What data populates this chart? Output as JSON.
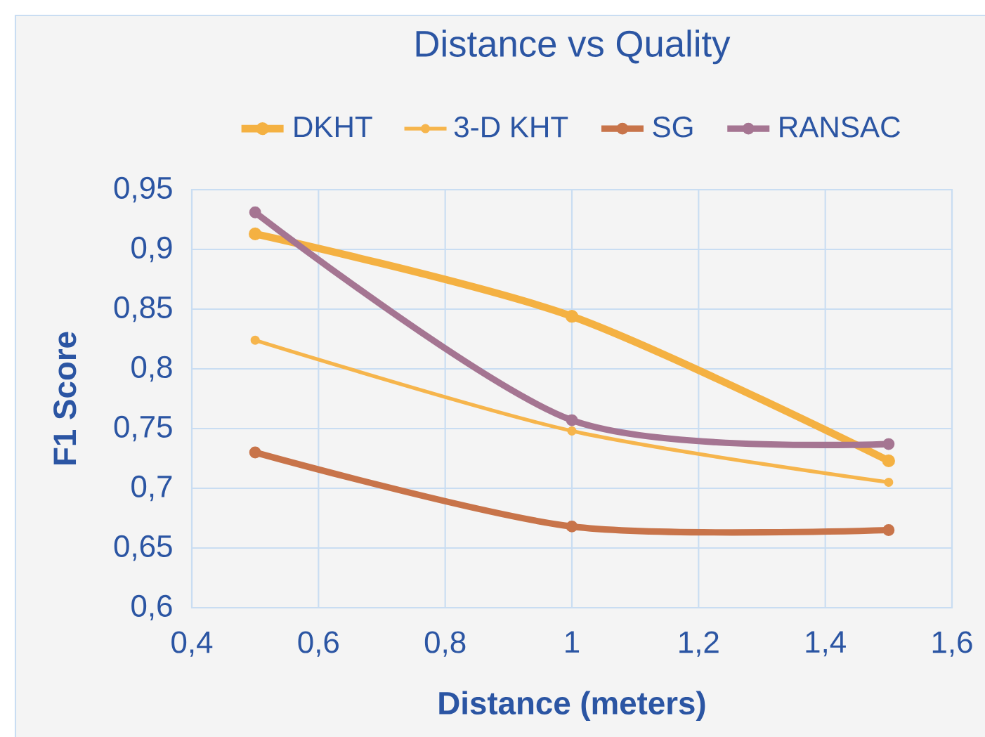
{
  "chart_data": {
    "type": "line",
    "title": "Distance vs Quality",
    "xlabel": "Distance (meters)",
    "ylabel": "F1 Score",
    "x": [
      0.5,
      1,
      1.5
    ],
    "series": [
      {
        "name": "DKHT",
        "color": "#f4b142",
        "values": [
          0.913,
          0.844,
          0.723
        ]
      },
      {
        "name": "3-D KHT",
        "color": "#f6b54c",
        "values": [
          0.824,
          0.748,
          0.705
        ]
      },
      {
        "name": "SG",
        "color": "#c8744a",
        "values": [
          0.73,
          0.668,
          0.665
        ]
      },
      {
        "name": "RANSAC",
        "color": "#a57592",
        "values": [
          0.931,
          0.757,
          0.737
        ]
      }
    ],
    "xlim": [
      0.4,
      1.6
    ],
    "xticks": [
      {
        "value": 0.4,
        "label": "0,4"
      },
      {
        "value": 0.6,
        "label": "0,6"
      },
      {
        "value": 0.8,
        "label": "0,8"
      },
      1,
      {
        "value": 1.2,
        "label": "1,2"
      },
      {
        "value": 1.4,
        "label": "1,4"
      },
      {
        "value": 1.6,
        "label": "1,6"
      }
    ],
    "ylim": [
      0.6,
      0.95
    ],
    "yticks": [
      {
        "value": 0.6,
        "label": "0,6"
      },
      {
        "value": 0.65,
        "label": "0,65"
      },
      {
        "value": 0.7,
        "label": "0,7"
      },
      {
        "value": 0.75,
        "label": "0,75"
      },
      {
        "value": 0.8,
        "label": "0,8"
      },
      {
        "value": 0.85,
        "label": "0,85"
      },
      {
        "value": 0.9,
        "label": "0,9"
      },
      {
        "value": 0.95,
        "label": "0,95"
      }
    ],
    "grid": true,
    "legend": "top",
    "marker": "circle",
    "line_style": "solid"
  }
}
